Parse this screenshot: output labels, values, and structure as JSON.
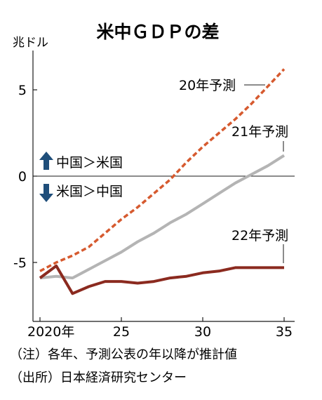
{
  "chart_data": {
    "type": "line",
    "title": "米中ＧＤＰの差",
    "ylabel": "兆ドル",
    "xlim": [
      2020,
      2035
    ],
    "ylim": [
      -8,
      7
    ],
    "x_ticks": [
      {
        "value": 2020,
        "label": "2020年"
      },
      {
        "value": 2025,
        "label": "25"
      },
      {
        "value": 2030,
        "label": "30"
      },
      {
        "value": 2035,
        "label": "35"
      }
    ],
    "y_ticks": [
      {
        "value": 5,
        "label": "5"
      },
      {
        "value": 0,
        "label": "0"
      },
      {
        "value": -5,
        "label": "-5"
      }
    ],
    "series": [
      {
        "name": "20年予測",
        "color": "#d65a2f",
        "dashed": true,
        "points": [
          {
            "x": 2020,
            "y": -5.5
          },
          {
            "x": 2021,
            "y": -5.0
          },
          {
            "x": 2022,
            "y": -4.6
          },
          {
            "x": 2023,
            "y": -4.1
          },
          {
            "x": 2024,
            "y": -3.3
          },
          {
            "x": 2025,
            "y": -2.5
          },
          {
            "x": 2026,
            "y": -1.8
          },
          {
            "x": 2027,
            "y": -1.0
          },
          {
            "x": 2028,
            "y": -0.2
          },
          {
            "x": 2029,
            "y": 0.8
          },
          {
            "x": 2030,
            "y": 1.7
          },
          {
            "x": 2031,
            "y": 2.5
          },
          {
            "x": 2032,
            "y": 3.3
          },
          {
            "x": 2033,
            "y": 4.2
          },
          {
            "x": 2034,
            "y": 5.2
          },
          {
            "x": 2035,
            "y": 6.2
          }
        ]
      },
      {
        "name": "21年予測",
        "color": "#b4b4b4",
        "dashed": false,
        "points": [
          {
            "x": 2020,
            "y": -5.9
          },
          {
            "x": 2021,
            "y": -5.8
          },
          {
            "x": 2022,
            "y": -5.9
          },
          {
            "x": 2023,
            "y": -5.4
          },
          {
            "x": 2024,
            "y": -4.9
          },
          {
            "x": 2025,
            "y": -4.4
          },
          {
            "x": 2026,
            "y": -3.8
          },
          {
            "x": 2027,
            "y": -3.3
          },
          {
            "x": 2028,
            "y": -2.7
          },
          {
            "x": 2029,
            "y": -2.2
          },
          {
            "x": 2030,
            "y": -1.6
          },
          {
            "x": 2031,
            "y": -1.0
          },
          {
            "x": 2032,
            "y": -0.4
          },
          {
            "x": 2033,
            "y": 0.1
          },
          {
            "x": 2034,
            "y": 0.6
          },
          {
            "x": 2035,
            "y": 1.2
          }
        ]
      },
      {
        "name": "22年予測",
        "color": "#8b2a1f",
        "dashed": false,
        "points": [
          {
            "x": 2020,
            "y": -5.9
          },
          {
            "x": 2021,
            "y": -5.2
          },
          {
            "x": 2022,
            "y": -6.8
          },
          {
            "x": 2023,
            "y": -6.4
          },
          {
            "x": 2024,
            "y": -6.1
          },
          {
            "x": 2025,
            "y": -6.1
          },
          {
            "x": 2026,
            "y": -6.2
          },
          {
            "x": 2027,
            "y": -6.1
          },
          {
            "x": 2028,
            "y": -5.9
          },
          {
            "x": 2029,
            "y": -5.8
          },
          {
            "x": 2030,
            "y": -5.6
          },
          {
            "x": 2031,
            "y": -5.5
          },
          {
            "x": 2032,
            "y": -5.3
          },
          {
            "x": 2033,
            "y": -5.3
          },
          {
            "x": 2034,
            "y": -5.3
          },
          {
            "x": 2035,
            "y": -5.3
          }
        ]
      }
    ],
    "annotations": {
      "china_above": "中国＞米国",
      "us_above": "米国＞中国",
      "note": "（注）各年、予測公表の年以降が推計値",
      "source": "（出所）日本経済研究センター"
    }
  }
}
